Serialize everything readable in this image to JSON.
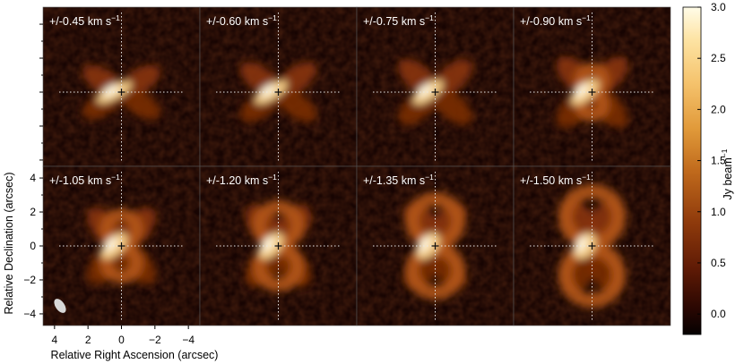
{
  "chart_data": {
    "type": "heatmap",
    "panels": [
      {
        "label": "+/-0.45 km s",
        "velocity_kms": 0.45
      },
      {
        "label": "+/-0.60 km s",
        "velocity_kms": 0.6
      },
      {
        "label": "+/-0.75 km s",
        "velocity_kms": 0.75
      },
      {
        "label": "+/-0.90 km s",
        "velocity_kms": 0.9
      },
      {
        "label": "+/-1.05 km s",
        "velocity_kms": 1.05
      },
      {
        "label": "+/-1.20 km s",
        "velocity_kms": 1.2
      },
      {
        "label": "+/-1.35 km s",
        "velocity_kms": 1.35
      },
      {
        "label": "+/-1.50 km s",
        "velocity_kms": 1.5
      }
    ],
    "panel_label_superscript": "−1",
    "xlabel": "Relative Right Ascension (arcsec)",
    "ylabel": "Relative Declination (arcsec)",
    "xlim": [
      4.5,
      -4.5
    ],
    "ylim": [
      -4.5,
      4.5
    ],
    "xticks": [
      4,
      2,
      0,
      -2,
      -4
    ],
    "xtick_labels": [
      "4",
      "2",
      "0",
      "−2",
      "−4"
    ],
    "yticks": [
      4,
      2,
      0,
      -2,
      -4
    ],
    "ytick_labels": [
      "4",
      "2",
      "0",
      "−2",
      "−4"
    ],
    "colorbar": {
      "label": "Jy beam",
      "label_superscript": "−1",
      "range": [
        -0.2,
        3.0
      ],
      "ticks": [
        3.0,
        2.5,
        2.0,
        1.5,
        1.0,
        0.5,
        0.0
      ],
      "tick_labels": [
        "3.0",
        "2.5",
        "2.0",
        "1.5",
        "1.0",
        "0.5",
        "0.0"
      ],
      "colors": [
        "#050101",
        "#2a0702",
        "#5e1a05",
        "#913c0c",
        "#c06a1c",
        "#e19a3a",
        "#f5c36d",
        "#fde3a3",
        "#fffce8"
      ]
    },
    "layout": "2 rows x 4 columns",
    "beam": {
      "position": "bottom-left"
    },
    "center_marker": true
  }
}
